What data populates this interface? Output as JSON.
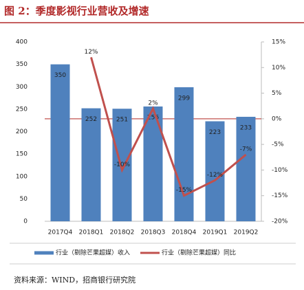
{
  "chart_data": {
    "type": "bar",
    "title": "图 2：季度影视行业营收及增速",
    "categories": [
      "2017Q4",
      "2018Q1",
      "2018Q2",
      "2018Q3",
      "2018Q4",
      "2019Q1",
      "2019Q2"
    ],
    "series": [
      {
        "name": "行业（剔除芒果超媒）收入",
        "color": "#4f81bd",
        "type": "bar",
        "values": [
          350,
          252,
          251,
          256,
          299,
          223,
          233
        ]
      },
      {
        "name": "行业（剔除芒果超媒）同比",
        "color": "#c0504d",
        "type": "line",
        "axis": "y2",
        "values": [
          null,
          12,
          -10,
          2,
          -15,
          -12,
          -7
        ],
        "value_labels": [
          null,
          "12%",
          "-10%",
          "2%",
          "-15%",
          "-12%",
          "-7%"
        ]
      }
    ],
    "ylim": [
      0,
      400
    ],
    "yticks": [
      0,
      50,
      100,
      150,
      200,
      250,
      300,
      350,
      400
    ],
    "y2lim": [
      -20,
      15
    ],
    "y2ticks": [
      {
        "value": -20,
        "label": "-20%"
      },
      {
        "value": -15,
        "label": "-15%"
      },
      {
        "value": -10,
        "label": "-10%"
      },
      {
        "value": -5,
        "label": "-5%"
      },
      {
        "value": 0,
        "label": "0%"
      },
      {
        "value": 5,
        "label": "5%"
      },
      {
        "value": 10,
        "label": "10%"
      },
      {
        "value": 15,
        "label": "15%"
      }
    ],
    "legend": "bottom",
    "source": "资料来源：WIND，招商银行研究院"
  }
}
